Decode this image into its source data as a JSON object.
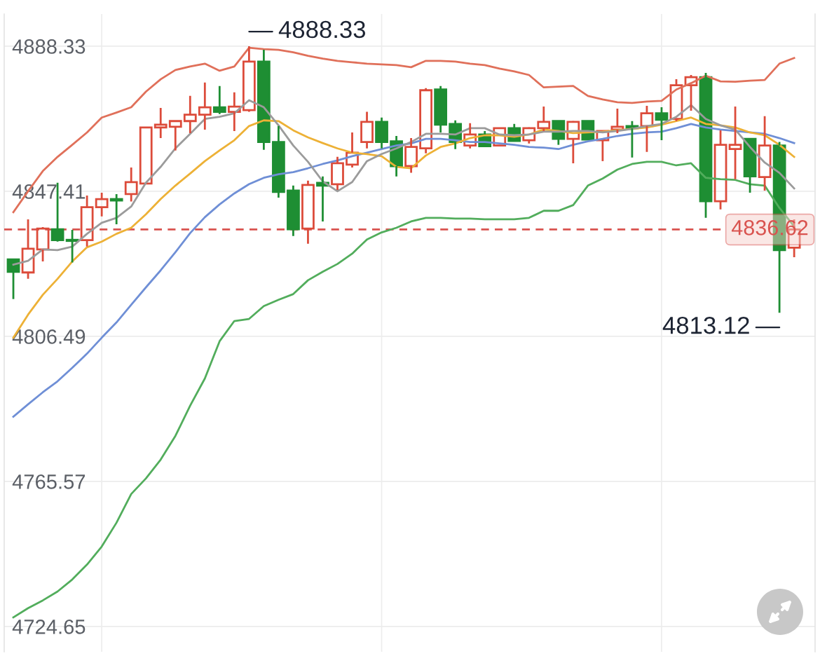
{
  "chart_data": {
    "type": "candlestick",
    "categories": [
      null,
      null,
      null,
      null,
      null,
      null,
      null,
      null,
      null,
      null,
      null,
      null,
      null,
      null,
      null,
      null,
      null,
      null,
      null,
      null,
      null,
      null,
      null,
      null,
      null,
      null,
      null,
      null,
      null,
      null,
      null,
      null,
      null,
      null,
      null,
      null,
      null,
      null,
      null,
      null,
      null,
      null,
      null,
      null,
      null,
      null,
      null,
      null,
      null,
      null,
      null,
      null,
      null,
      null
    ],
    "ohlc": [
      [
        4828.2,
        4828.2,
        4817.0,
        4824.7
      ],
      [
        4824.5,
        4839.5,
        4822.7,
        4831.2
      ],
      [
        4831.0,
        4837.3,
        4827.6,
        4836.9
      ],
      [
        4836.7,
        4849.8,
        4833.2,
        4833.6
      ],
      [
        4833.7,
        4836.5,
        4827.3,
        4833.4
      ],
      [
        4833.6,
        4846.2,
        4831.8,
        4842.9
      ],
      [
        4842.9,
        4847.0,
        4840.3,
        4845.2
      ],
      [
        4845.2,
        4846.6,
        4838.1,
        4844.8
      ],
      [
        4846.6,
        4854.1,
        4844.5,
        4850.0
      ],
      [
        4849.6,
        4865.4,
        4849.6,
        4865.4
      ],
      [
        4865.4,
        4870.9,
        4862.4,
        4866.2
      ],
      [
        4865.6,
        4867.2,
        4858.9,
        4867.2
      ],
      [
        4867.2,
        4874.3,
        4863.8,
        4869.0
      ],
      [
        4869.0,
        4878.1,
        4864.8,
        4871.1
      ],
      [
        4871.1,
        4877.1,
        4869.2,
        4869.8
      ],
      [
        4869.8,
        4875.3,
        4864.4,
        4871.3
      ],
      [
        4870.3,
        4888.33,
        4869.8,
        4884.0
      ],
      [
        4884.0,
        4887.3,
        4859.1,
        4861.3
      ],
      [
        4861.3,
        4865.8,
        4845.6,
        4847.2
      ],
      [
        4847.6,
        4849.0,
        4834.8,
        4836.7
      ],
      [
        4836.9,
        4850.4,
        4832.6,
        4849.2
      ],
      [
        4849.8,
        4851.6,
        4838.9,
        4849.0
      ],
      [
        4849.4,
        4857.1,
        4847.8,
        4855.3
      ],
      [
        4854.9,
        4864.0,
        4854.1,
        4858.3
      ],
      [
        4861.3,
        4869.8,
        4859.5,
        4867.0
      ],
      [
        4867.0,
        4868.2,
        4859.5,
        4861.3
      ],
      [
        4861.5,
        4863.0,
        4851.6,
        4854.5
      ],
      [
        4854.5,
        4862.4,
        4852.6,
        4859.9
      ],
      [
        4859.5,
        4876.5,
        4858.1,
        4875.9
      ],
      [
        4876.1,
        4877.1,
        4864.0,
        4866.2
      ],
      [
        4866.4,
        4867.4,
        4859.3,
        4861.3
      ],
      [
        4860.3,
        4866.6,
        4859.5,
        4863.4
      ],
      [
        4863.4,
        4864.4,
        4860.1,
        4860.1
      ],
      [
        4860.3,
        4865.2,
        4860.3,
        4865.2
      ],
      [
        4865.2,
        4866.4,
        4861.6,
        4861.6
      ],
      [
        4861.8,
        4865.4,
        4860.9,
        4865.2
      ],
      [
        4865.2,
        4871.3,
        4864.4,
        4867.0
      ],
      [
        4867.2,
        4867.2,
        4860.5,
        4862.2
      ],
      [
        4862.2,
        4867.2,
        4855.3,
        4867.0
      ],
      [
        4867.2,
        4867.2,
        4862.0,
        4862.0
      ],
      [
        4861.8,
        4864.4,
        4855.9,
        4864.4
      ],
      [
        4864.8,
        4870.7,
        4863.8,
        4865.6
      ],
      [
        4865.8,
        4867.2,
        4856.9,
        4865.2
      ],
      [
        4865.8,
        4871.5,
        4858.5,
        4869.4
      ],
      [
        4869.4,
        4871.1,
        4861.8,
        4867.6
      ],
      [
        4867.8,
        4879.0,
        4867.2,
        4877.3
      ],
      [
        4877.3,
        4880.2,
        4870.1,
        4879.6
      ],
      [
        4879.6,
        4880.8,
        4839.9,
        4844.6
      ],
      [
        4844.6,
        4864.6,
        4842.3,
        4860.5
      ],
      [
        4859.3,
        4871.3,
        4850.8,
        4860.5
      ],
      [
        4862.2,
        4862.2,
        4847.0,
        4851.6
      ],
      [
        4851.4,
        4868.6,
        4847.6,
        4860.3
      ],
      [
        4860.3,
        4861.3,
        4813.12,
        4830.8
      ],
      [
        4831.5,
        4839.5,
        4828.8,
        4836.62
      ]
    ],
    "colors": [
      "#1e8e33",
      "#dc4b3a",
      "#dc4b3a",
      "#1e8e33",
      "#1e8e33",
      "#dc4b3a",
      "#dc4b3a",
      "#1e8e33",
      "#dc4b3a",
      "#dc4b3a",
      "#dc4b3a",
      "#dc4b3a",
      "#dc4b3a",
      "#dc4b3a",
      "#1e8e33",
      "#dc4b3a",
      "#dc4b3a",
      "#1e8e33",
      "#1e8e33",
      "#1e8e33",
      "#dc4b3a",
      "#1e8e33",
      "#dc4b3a",
      "#dc4b3a",
      "#dc4b3a",
      "#1e8e33",
      "#1e8e33",
      "#dc4b3a",
      "#dc4b3a",
      "#1e8e33",
      "#1e8e33",
      "#dc4b3a",
      "#1e8e33",
      "#dc4b3a",
      "#1e8e33",
      "#dc4b3a",
      "#dc4b3a",
      "#1e8e33",
      "#dc4b3a",
      "#1e8e33",
      "#dc4b3a",
      "#dc4b3a",
      "#1e8e33",
      "#dc4b3a",
      "#1e8e33",
      "#dc4b3a",
      "#dc4b3a",
      "#1e8e33",
      "#dc4b3a",
      "#dc4b3a",
      "#1e8e33",
      "#dc4b3a",
      "#1e8e33",
      "#dc4b3a"
    ],
    "series": [
      {
        "type": "line",
        "color": "#e0705a",
        "values": [
          4841.5,
          4847.4,
          4853.1,
          4857.1,
          4860.5,
          4864.0,
          4868.2,
          4869.6,
          4871.1,
          4875.5,
          4879.0,
          4881.6,
          4882.6,
          4883.4,
          4881.4,
          4882.6,
          4887.9,
          4887.5,
          4887.3,
          4886.6,
          4885.6,
          4884.8,
          4884.2,
          4883.8,
          4883.4,
          4883.2,
          4883.0,
          4882.4,
          4884.2,
          4884.2,
          4884.0,
          4883.4,
          4883.0,
          4882.0,
          4881.2,
          4880.2,
          4876.7,
          4876.9,
          4877.1,
          4874.3,
          4873.3,
          4872.5,
          4872.3,
          4872.7,
          4872.9,
          4876.1,
          4877.9,
          4880.0,
          4878.4,
          4878.3,
          4878.6,
          4878.8,
          4883.4,
          4885.0
        ]
      },
      {
        "type": "line",
        "color": "#52ad5c",
        "values": [
          4727.2,
          4729.8,
          4732.0,
          4734.5,
          4737.9,
          4742.1,
          4747.2,
          4753.9,
          4762.0,
          4766.4,
          4771.7,
          4778.4,
          4786.9,
          4794.6,
          4805.1,
          4810.8,
          4811.4,
          4815.0,
          4816.8,
          4818.4,
          4822.3,
          4824.7,
          4826.9,
          4829.8,
          4833.8,
          4835.8,
          4837.1,
          4838.9,
          4839.9,
          4839.9,
          4839.7,
          4839.7,
          4839.5,
          4839.5,
          4839.5,
          4839.9,
          4841.9,
          4841.9,
          4843.5,
          4849.0,
          4851.0,
          4853.5,
          4855.1,
          4855.7,
          4855.7,
          4854.7,
          4855.3,
          4851.2,
          4850.8,
          4850.6,
          4849.4,
          4849.0,
          4842.7,
          4837.5
        ]
      },
      {
        "type": "line",
        "color": "#6f8fd6",
        "values": [
          4783.8,
          4787.3,
          4790.7,
          4793.8,
          4797.6,
          4801.6,
          4806.1,
          4810.4,
          4815.4,
          4820.3,
          4825.1,
          4830.2,
          4835.6,
          4840.1,
          4843.7,
          4846.8,
          4849.4,
          4851.2,
          4852.2,
          4852.8,
          4853.9,
          4855.1,
          4856.1,
          4857.3,
          4858.3,
          4859.3,
          4860.3,
          4860.9,
          4862.2,
          4862.2,
          4861.8,
          4861.3,
          4861.3,
          4860.9,
          4860.5,
          4859.9,
          4859.7,
          4859.3,
          4860.5,
          4861.5,
          4862.2,
          4863.0,
          4863.6,
          4864.0,
          4864.2,
          4865.2,
          4866.4,
          4865.4,
          4864.8,
          4864.4,
          4864.0,
          4863.6,
          4862.4,
          4861.0
        ]
      },
      {
        "type": "line",
        "color": "#edb136",
        "values": [
          4806.1,
          4812.6,
          4818.2,
          4822.7,
          4827.6,
          4831.6,
          4833.2,
          4835.4,
          4837.1,
          4840.9,
          4845.2,
          4849.0,
          4852.4,
          4855.9,
          4858.9,
          4861.8,
          4865.8,
          4867.4,
          4867.2,
          4864.6,
          4862.6,
          4861.0,
          4859.5,
          4858.3,
          4857.9,
          4857.3,
          4854.3,
          4853.9,
          4857.5,
          4859.9,
          4860.9,
          4862.4,
          4863.2,
          4863.2,
          4862.8,
          4863.4,
          4864.8,
          4864.4,
          4863.8,
          4864.0,
          4864.2,
          4864.6,
          4865.0,
          4865.4,
          4866.2,
          4867.2,
          4868.2,
          4866.4,
          4866.0,
          4865.4,
          4864.0,
          4863.2,
          4860.5,
          4857.1
        ]
      },
      {
        "type": "line",
        "color": "#9b9b9b",
        "values": [
          4826.7,
          4827.8,
          4831.0,
          4830.8,
          4831.8,
          4835.4,
          4838.5,
          4839.9,
          4843.1,
          4849.8,
          4854.3,
          4859.5,
          4863.6,
          4867.8,
          4868.4,
          4869.4,
          4873.1,
          4871.1,
          4866.0,
          4860.3,
          4855.7,
          4850.2,
          4847.4,
          4850.0,
          4855.9,
          4857.9,
          4859.5,
          4861.3,
          4863.6,
          4863.6,
          4863.4,
          4865.2,
          4865.2,
          4863.4,
          4863.2,
          4863.4,
          4864.2,
          4864.2,
          4864.4,
          4864.4,
          4864.0,
          4864.4,
          4865.0,
          4865.8,
          4866.4,
          4868.4,
          4871.7,
          4867.8,
          4866.0,
          4864.8,
          4859.9,
          4855.5,
          4852.6,
          4848.2
        ]
      }
    ],
    "ylim": [
      4717.5,
      4897.4
    ],
    "yticks": [
      4724.65,
      4765.57,
      4806.49,
      4847.41,
      4888.33
    ],
    "grid": true,
    "tick_labels": "y",
    "ref_lines": [
      {
        "axis": "y",
        "value": 4836.62,
        "label": "4836.62",
        "color": "#d9534f",
        "line_style": "dashed"
      }
    ],
    "annotations": [
      "4888.33",
      "4813.12"
    ]
  }
}
